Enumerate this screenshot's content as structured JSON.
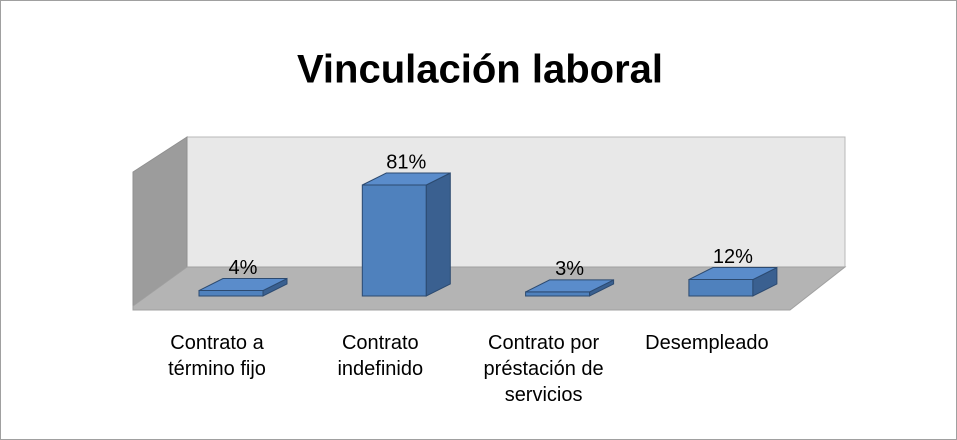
{
  "chart_data": {
    "type": "bar3d",
    "title": "Vinculación laboral",
    "categories": [
      "Contrato a término fijo",
      "Contrato indefinido",
      "Contrato por préstación de servicios",
      "Desempleado"
    ],
    "values": [
      4,
      81,
      3,
      12
    ],
    "value_labels": [
      "4%",
      "81%",
      "3%",
      "12%"
    ],
    "color": "#4f81bd"
  }
}
